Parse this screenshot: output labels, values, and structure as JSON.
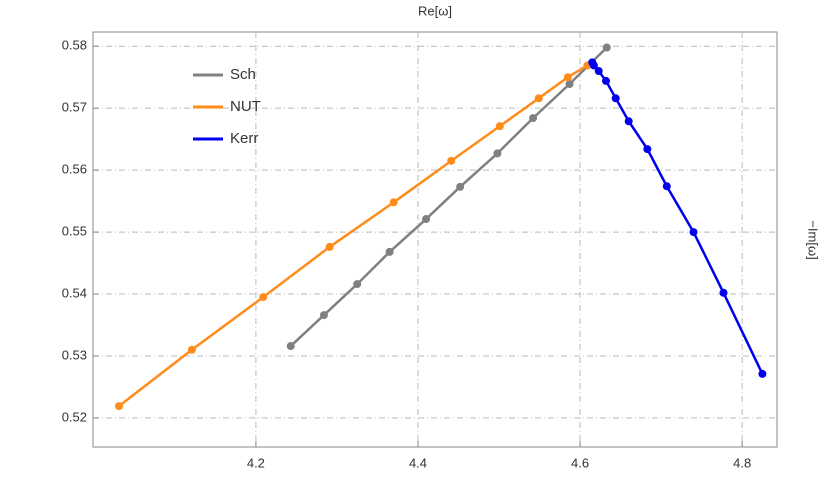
{
  "chart_data": {
    "type": "line",
    "xlabel": "Re[ω]",
    "ylabel": "−Im[ω]",
    "xlim": [
      3.999,
      4.843
    ],
    "ylim": [
      0.5153,
      0.5823
    ],
    "xticks": [
      4.2,
      4.4,
      4.6,
      4.8
    ],
    "yticks": [
      0.52,
      0.53,
      0.54,
      0.55,
      0.56,
      0.57,
      0.58
    ],
    "grid": true,
    "legend": "upper left",
    "series": [
      {
        "name": "Sch",
        "color": "#808080",
        "x": [
          4.243,
          4.284,
          4.325,
          4.365,
          4.41,
          4.452,
          4.498,
          4.542,
          4.587,
          4.633
        ],
        "values": [
          0.5316,
          0.5366,
          0.5416,
          0.5468,
          0.5521,
          0.5573,
          0.5627,
          0.5684,
          0.5739,
          0.5798
        ]
      },
      {
        "name": "NUT",
        "color": "#ff8c1a",
        "x": [
          4.031,
          4.121,
          4.209,
          4.291,
          4.37,
          4.441,
          4.501,
          4.549,
          4.585,
          4.609
        ],
        "values": [
          0.5219,
          0.531,
          0.5395,
          0.5476,
          0.5548,
          0.5615,
          0.5671,
          0.5716,
          0.575,
          0.5769
        ]
      },
      {
        "name": "Kerr",
        "color": "#0000ee",
        "x": [
          4.615,
          4.617,
          4.623,
          4.632,
          4.644,
          4.66,
          4.683,
          4.707,
          4.74,
          4.777,
          4.825
        ],
        "values": [
          0.5774,
          0.5769,
          0.576,
          0.5744,
          0.5716,
          0.5679,
          0.5634,
          0.5574,
          0.55,
          0.5402,
          0.5271
        ]
      }
    ]
  }
}
